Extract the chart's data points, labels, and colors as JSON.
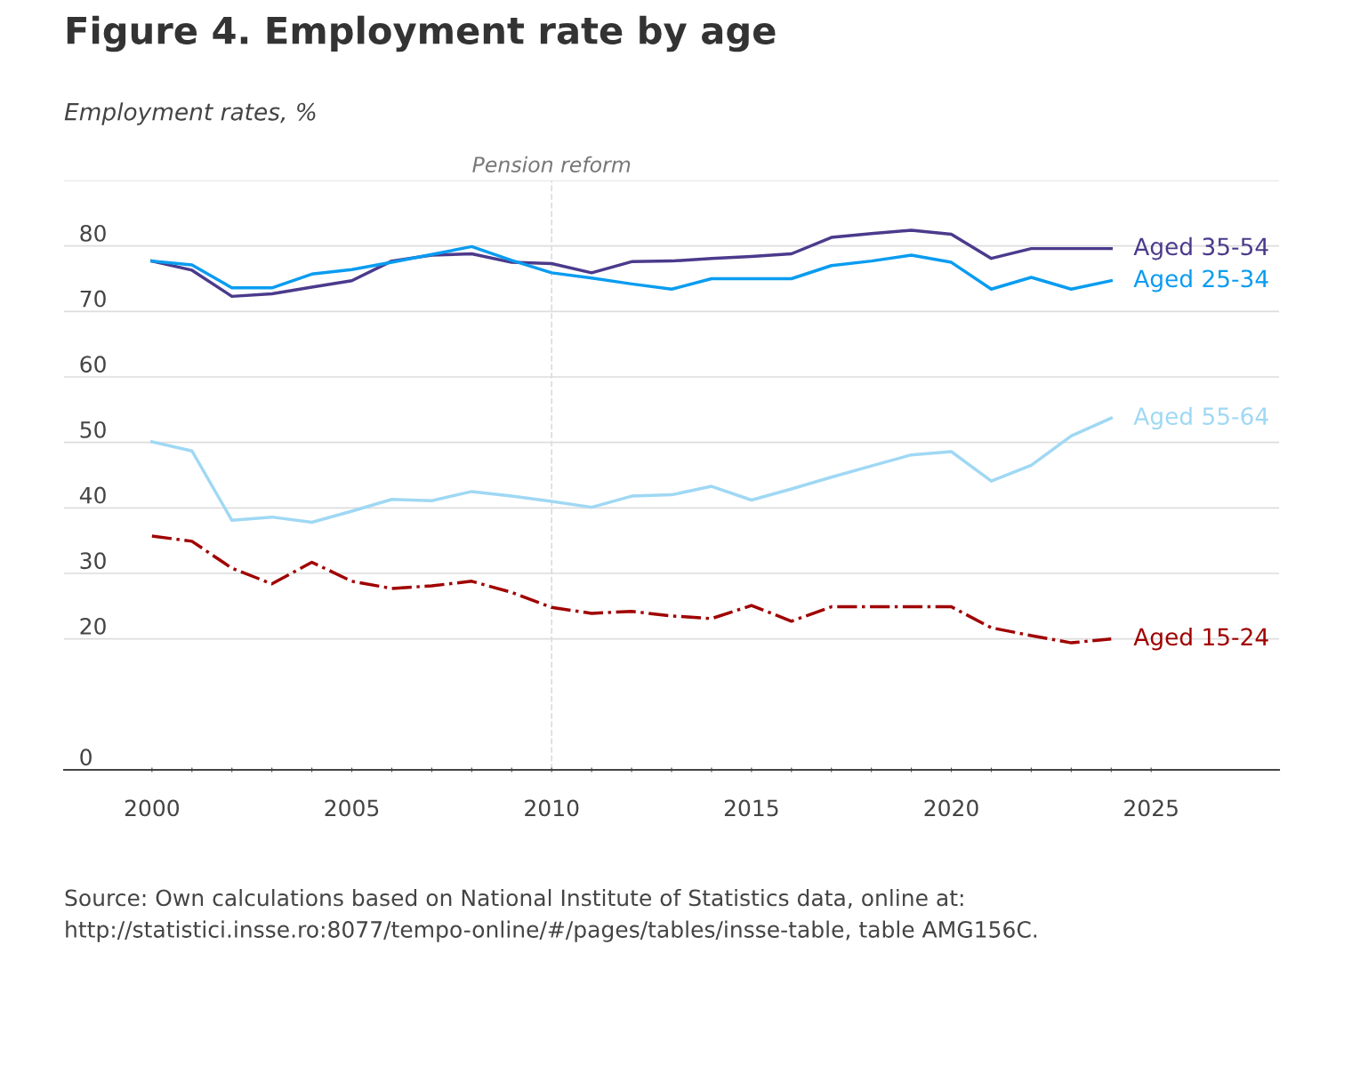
{
  "chart_data": {
    "type": "line",
    "title": "Figure 4. Employment rate by age",
    "ylabel": "Employment rates, %",
    "x": [
      2000,
      2001,
      2002,
      2003,
      2004,
      2005,
      2006,
      2007,
      2008,
      2009,
      2010,
      2011,
      2012,
      2013,
      2014,
      2015,
      2016,
      2017,
      2018,
      2019,
      2020,
      2021,
      2022,
      2023,
      2024
    ],
    "series": [
      {
        "name": "Aged 35-54",
        "color": "#4b3a8c",
        "values": [
          77.7,
          76.3,
          72.3,
          72.7,
          73.7,
          74.7,
          77.7,
          78.6,
          78.8,
          77.5,
          77.3,
          75.9,
          77.6,
          77.7,
          78.1,
          78.4,
          78.8,
          81.3,
          81.9,
          82.4,
          81.8,
          78.1,
          79.6,
          79.6,
          79.6
        ]
      },
      {
        "name": "Aged 25-34",
        "color": "#0a9cf0",
        "values": [
          77.7,
          77.1,
          73.6,
          73.6,
          75.7,
          76.4,
          77.5,
          78.7,
          79.9,
          77.8,
          75.9,
          75.1,
          74.2,
          73.4,
          75.0,
          75.0,
          75.0,
          77.0,
          77.7,
          78.6,
          77.5,
          73.4,
          75.2,
          73.4,
          74.7
        ]
      },
      {
        "name": "Aged 55-64",
        "color": "#9fd8f4",
        "values": [
          50.1,
          48.7,
          38.1,
          38.6,
          37.8,
          39.5,
          41.3,
          41.1,
          42.5,
          41.8,
          41.0,
          40.1,
          41.8,
          42.0,
          43.3,
          41.2,
          42.9,
          44.7,
          46.4,
          48.1,
          48.6,
          44.1,
          46.5,
          51.0,
          53.7
        ]
      },
      {
        "name": "Aged 15-24",
        "color": "#a00000",
        "line_style": "dashdot",
        "values": [
          35.7,
          34.9,
          30.8,
          28.4,
          31.7,
          28.8,
          27.7,
          28.1,
          28.8,
          27.1,
          24.8,
          23.9,
          24.2,
          23.5,
          23.1,
          25.1,
          22.7,
          24.9,
          24.9,
          24.9,
          24.9,
          21.7,
          20.5,
          19.4,
          20.0
        ]
      }
    ],
    "xlim": [
      1997.8,
      2028.2
    ],
    "xticks": [
      2000,
      {
        "value": 2001,
        "label": null
      },
      {
        "value": 2002,
        "label": null
      },
      {
        "value": 2003,
        "label": null
      },
      {
        "value": 2004,
        "label": null
      },
      2005,
      {
        "value": 2006,
        "label": null
      },
      {
        "value": 2007,
        "label": null
      },
      {
        "value": 2008,
        "label": null
      },
      {
        "value": 2009,
        "label": null
      },
      2010,
      {
        "value": 2011,
        "label": null
      },
      {
        "value": 2012,
        "label": null
      },
      {
        "value": 2013,
        "label": null
      },
      {
        "value": 2014,
        "label": null
      },
      2015,
      {
        "value": 2016,
        "label": null
      },
      {
        "value": 2017,
        "label": null
      },
      {
        "value": 2018,
        "label": null
      },
      {
        "value": 2019,
        "label": null
      },
      2020,
      {
        "value": 2021,
        "label": null
      },
      {
        "value": 2022,
        "label": null
      },
      {
        "value": 2023,
        "label": null
      },
      {
        "value": 2024,
        "label": null
      },
      2025
    ],
    "ylim": [
      0,
      90
    ],
    "yticks": [
      0,
      20,
      30,
      40,
      50,
      60,
      70,
      80,
      {
        "value": 90,
        "label": null
      }
    ],
    "grid": "y",
    "legend": false,
    "ref_lines": [
      {
        "axis": "x",
        "value": 2010,
        "label": "Pension reform",
        "color": "#dddddd",
        "line_style": "dashed"
      }
    ],
    "annotations": [
      "Source: Own calculations based on National Institute of Statistics data, online at: http://statistici.insse.ro:8077/tempo-online/#/pages/tables/insse-table, table AMG156C."
    ]
  }
}
